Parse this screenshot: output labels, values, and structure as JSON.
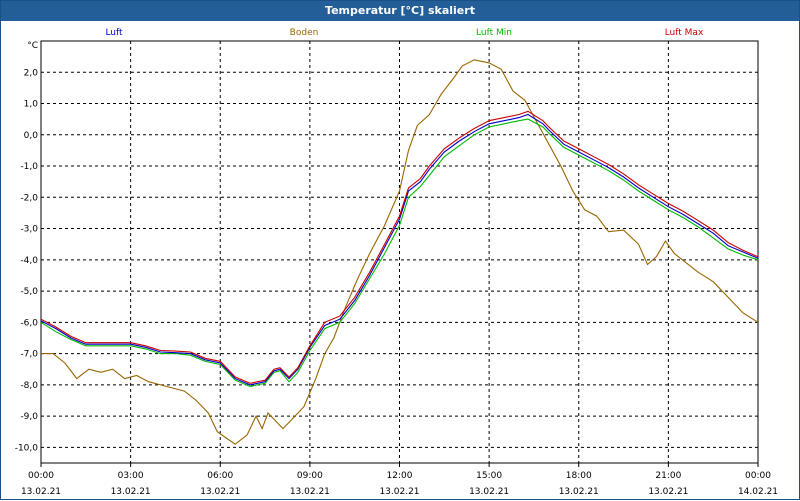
{
  "window": {
    "title": "Temperatur [°C] skaliert"
  },
  "chart_data": {
    "type": "line",
    "title": "Temperatur [°C] skaliert",
    "ylabel": "°C",
    "xlabel": "",
    "ylim": [
      -10.5,
      3.0
    ],
    "xlim_hours": [
      0,
      24
    ],
    "yticks": [
      "2,0",
      "1,0",
      "0,0",
      "-1,0",
      "-2,0",
      "-3,0",
      "-4,0",
      "-5,0",
      "-6,0",
      "-7,0",
      "-8,0",
      "-9,0",
      "-10,0"
    ],
    "ytick_values": [
      2,
      1,
      0,
      -1,
      -2,
      -3,
      -4,
      -5,
      -6,
      -7,
      -8,
      -9,
      -10
    ],
    "xticks": [
      {
        "time": "00:00",
        "date": "13.02.21"
      },
      {
        "time": "03:00",
        "date": "13.02.21"
      },
      {
        "time": "06:00",
        "date": "13.02.21"
      },
      {
        "time": "09:00",
        "date": "13.02.21"
      },
      {
        "time": "12:00",
        "date": "13.02.21"
      },
      {
        "time": "15:00",
        "date": "13.02.21"
      },
      {
        "time": "18:00",
        "date": "13.02.21"
      },
      {
        "time": "21:00",
        "date": "13.02.21"
      },
      {
        "time": "00:00",
        "date": "14.02.21"
      }
    ],
    "grid": true,
    "legend_position": "top",
    "series": [
      {
        "name": "Luft",
        "color": "#0000cc",
        "points": [
          [
            0,
            -5.95
          ],
          [
            0.5,
            -6.2
          ],
          [
            1,
            -6.5
          ],
          [
            1.5,
            -6.7
          ],
          [
            2,
            -6.7
          ],
          [
            2.5,
            -6.7
          ],
          [
            3,
            -6.7
          ],
          [
            3.5,
            -6.8
          ],
          [
            4,
            -6.95
          ],
          [
            4.5,
            -6.97
          ],
          [
            5,
            -7.0
          ],
          [
            5.5,
            -7.2
          ],
          [
            6,
            -7.3
          ],
          [
            6.5,
            -7.8
          ],
          [
            7,
            -8.0
          ],
          [
            7.5,
            -7.9
          ],
          [
            7.8,
            -7.55
          ],
          [
            8,
            -7.5
          ],
          [
            8.3,
            -7.8
          ],
          [
            8.6,
            -7.5
          ],
          [
            9,
            -6.8
          ],
          [
            9.5,
            -6.1
          ],
          [
            10,
            -5.9
          ],
          [
            10.5,
            -5.3
          ],
          [
            11,
            -4.5
          ],
          [
            11.5,
            -3.6
          ],
          [
            12,
            -2.7
          ],
          [
            12.3,
            -1.8
          ],
          [
            12.7,
            -1.5
          ],
          [
            13,
            -1.1
          ],
          [
            13.5,
            -0.55
          ],
          [
            14,
            -0.2
          ],
          [
            14.5,
            0.1
          ],
          [
            15,
            0.35
          ],
          [
            15.5,
            0.45
          ],
          [
            16,
            0.55
          ],
          [
            16.3,
            0.65
          ],
          [
            16.8,
            0.35
          ],
          [
            17,
            0.15
          ],
          [
            17.5,
            -0.3
          ],
          [
            18,
            -0.55
          ],
          [
            18.5,
            -0.8
          ],
          [
            19,
            -1.05
          ],
          [
            19.5,
            -1.35
          ],
          [
            20,
            -1.7
          ],
          [
            20.5,
            -2.0
          ],
          [
            21,
            -2.3
          ],
          [
            21.5,
            -2.55
          ],
          [
            22,
            -2.85
          ],
          [
            22.5,
            -3.15
          ],
          [
            23,
            -3.55
          ],
          [
            23.5,
            -3.75
          ],
          [
            24,
            -3.95
          ]
        ]
      },
      {
        "name": "Boden",
        "color": "#996600",
        "points": [
          [
            0,
            -7.0
          ],
          [
            0.4,
            -7.0
          ],
          [
            0.8,
            -7.3
          ],
          [
            1.2,
            -7.8
          ],
          [
            1.6,
            -7.5
          ],
          [
            2,
            -7.6
          ],
          [
            2.4,
            -7.5
          ],
          [
            2.8,
            -7.8
          ],
          [
            3.2,
            -7.7
          ],
          [
            3.6,
            -7.9
          ],
          [
            4,
            -8.0
          ],
          [
            4.4,
            -8.1
          ],
          [
            4.8,
            -8.2
          ],
          [
            5.2,
            -8.5
          ],
          [
            5.6,
            -8.9
          ],
          [
            5.9,
            -9.5
          ],
          [
            6.2,
            -9.7
          ],
          [
            6.5,
            -9.9
          ],
          [
            6.9,
            -9.6
          ],
          [
            7.2,
            -9.0
          ],
          [
            7.4,
            -9.4
          ],
          [
            7.6,
            -8.9
          ],
          [
            7.8,
            -9.1
          ],
          [
            8.1,
            -9.4
          ],
          [
            8.4,
            -9.1
          ],
          [
            8.8,
            -8.7
          ],
          [
            9.2,
            -7.8
          ],
          [
            9.5,
            -7.0
          ],
          [
            9.8,
            -6.5
          ],
          [
            10.2,
            -5.5
          ],
          [
            10.6,
            -4.6
          ],
          [
            11,
            -3.8
          ],
          [
            11.5,
            -2.9
          ],
          [
            12,
            -1.8
          ],
          [
            12.3,
            -0.5
          ],
          [
            12.6,
            0.3
          ],
          [
            13,
            0.65
          ],
          [
            13.4,
            1.3
          ],
          [
            13.8,
            1.8
          ],
          [
            14.1,
            2.2
          ],
          [
            14.5,
            2.4
          ],
          [
            15,
            2.3
          ],
          [
            15.4,
            2.1
          ],
          [
            15.8,
            1.4
          ],
          [
            16.2,
            1.1
          ],
          [
            16.6,
            0.4
          ],
          [
            17,
            -0.3
          ],
          [
            17.4,
            -1.0
          ],
          [
            17.8,
            -1.8
          ],
          [
            18.2,
            -2.4
          ],
          [
            18.6,
            -2.6
          ],
          [
            19,
            -3.1
          ],
          [
            19.5,
            -3.05
          ],
          [
            20,
            -3.5
          ],
          [
            20.3,
            -4.15
          ],
          [
            20.6,
            -3.9
          ],
          [
            20.9,
            -3.4
          ],
          [
            21.2,
            -3.8
          ],
          [
            21.6,
            -4.1
          ],
          [
            22,
            -4.4
          ],
          [
            22.5,
            -4.7
          ],
          [
            23,
            -5.2
          ],
          [
            23.5,
            -5.7
          ],
          [
            24,
            -6.0
          ]
        ]
      },
      {
        "name": "Luft Min",
        "color": "#00bb00",
        "points": [
          [
            0,
            -6.0
          ],
          [
            0.5,
            -6.3
          ],
          [
            1,
            -6.55
          ],
          [
            1.5,
            -6.75
          ],
          [
            2,
            -6.75
          ],
          [
            2.5,
            -6.75
          ],
          [
            3,
            -6.75
          ],
          [
            3.5,
            -6.85
          ],
          [
            4,
            -7.0
          ],
          [
            4.5,
            -7.0
          ],
          [
            5,
            -7.05
          ],
          [
            5.5,
            -7.25
          ],
          [
            6,
            -7.35
          ],
          [
            6.5,
            -7.85
          ],
          [
            7,
            -8.05
          ],
          [
            7.5,
            -7.95
          ],
          [
            7.8,
            -7.6
          ],
          [
            8,
            -7.55
          ],
          [
            8.3,
            -7.9
          ],
          [
            8.6,
            -7.6
          ],
          [
            9,
            -6.9
          ],
          [
            9.5,
            -6.2
          ],
          [
            10,
            -6.0
          ],
          [
            10.5,
            -5.4
          ],
          [
            11,
            -4.6
          ],
          [
            11.5,
            -3.8
          ],
          [
            12,
            -2.9
          ],
          [
            12.3,
            -2.0
          ],
          [
            12.7,
            -1.65
          ],
          [
            13,
            -1.3
          ],
          [
            13.5,
            -0.7
          ],
          [
            14,
            -0.35
          ],
          [
            14.5,
            0.0
          ],
          [
            15,
            0.25
          ],
          [
            15.5,
            0.35
          ],
          [
            16,
            0.45
          ],
          [
            16.3,
            0.5
          ],
          [
            16.8,
            0.25
          ],
          [
            17,
            0.05
          ],
          [
            17.5,
            -0.4
          ],
          [
            18,
            -0.65
          ],
          [
            18.5,
            -0.9
          ],
          [
            19,
            -1.15
          ],
          [
            19.5,
            -1.45
          ],
          [
            20,
            -1.8
          ],
          [
            20.5,
            -2.1
          ],
          [
            21,
            -2.4
          ],
          [
            21.5,
            -2.65
          ],
          [
            22,
            -2.95
          ],
          [
            22.5,
            -3.3
          ],
          [
            23,
            -3.65
          ],
          [
            23.5,
            -3.85
          ],
          [
            24,
            -4.0
          ]
        ]
      },
      {
        "name": "Luft Max",
        "color": "#cc0000",
        "points": [
          [
            0,
            -5.9
          ],
          [
            0.5,
            -6.15
          ],
          [
            1,
            -6.45
          ],
          [
            1.5,
            -6.65
          ],
          [
            2,
            -6.65
          ],
          [
            2.5,
            -6.65
          ],
          [
            3,
            -6.65
          ],
          [
            3.5,
            -6.75
          ],
          [
            4,
            -6.9
          ],
          [
            4.5,
            -6.92
          ],
          [
            5,
            -6.95
          ],
          [
            5.5,
            -7.15
          ],
          [
            6,
            -7.25
          ],
          [
            6.5,
            -7.75
          ],
          [
            7,
            -7.95
          ],
          [
            7.5,
            -7.85
          ],
          [
            7.8,
            -7.5
          ],
          [
            8,
            -7.45
          ],
          [
            8.3,
            -7.75
          ],
          [
            8.6,
            -7.45
          ],
          [
            9,
            -6.75
          ],
          [
            9.5,
            -6.0
          ],
          [
            10,
            -5.8
          ],
          [
            10.5,
            -5.2
          ],
          [
            11,
            -4.4
          ],
          [
            11.5,
            -3.5
          ],
          [
            12,
            -2.6
          ],
          [
            12.3,
            -1.7
          ],
          [
            12.7,
            -1.4
          ],
          [
            13,
            -1.0
          ],
          [
            13.5,
            -0.45
          ],
          [
            14,
            -0.1
          ],
          [
            14.5,
            0.2
          ],
          [
            15,
            0.45
          ],
          [
            15.5,
            0.55
          ],
          [
            16,
            0.65
          ],
          [
            16.3,
            0.75
          ],
          [
            16.8,
            0.45
          ],
          [
            17,
            0.25
          ],
          [
            17.5,
            -0.2
          ],
          [
            18,
            -0.45
          ],
          [
            18.5,
            -0.7
          ],
          [
            19,
            -0.95
          ],
          [
            19.5,
            -1.25
          ],
          [
            20,
            -1.6
          ],
          [
            20.5,
            -1.9
          ],
          [
            21,
            -2.2
          ],
          [
            21.5,
            -2.45
          ],
          [
            22,
            -2.75
          ],
          [
            22.5,
            -3.05
          ],
          [
            23,
            -3.45
          ],
          [
            23.5,
            -3.7
          ],
          [
            24,
            -3.9
          ]
        ]
      }
    ]
  }
}
